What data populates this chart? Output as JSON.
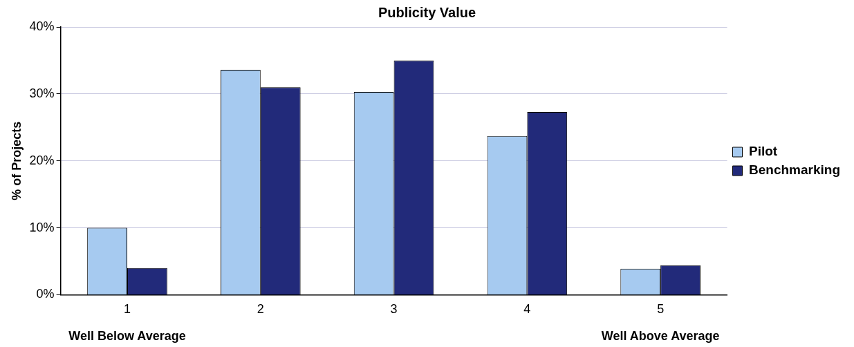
{
  "chart_data": {
    "type": "bar",
    "title": "Publicity Value",
    "ylabel": "% of Projects",
    "categories": [
      "1",
      "2",
      "3",
      "4",
      "5"
    ],
    "series": [
      {
        "name": "Pilot",
        "color": "#a6caf0",
        "values": [
          10,
          33.6,
          30.3,
          23.7,
          3.9
        ]
      },
      {
        "name": "Benchmarking",
        "color": "#222a7a",
        "values": [
          4,
          31,
          35,
          27.3,
          4.4
        ]
      }
    ],
    "ylim": [
      0,
      40
    ],
    "yticks": [
      {
        "value": 0,
        "label": "0%"
      },
      {
        "value": 10,
        "label": "10%"
      },
      {
        "value": 20,
        "label": "20%"
      },
      {
        "value": 30,
        "label": "30%"
      },
      {
        "value": 40,
        "label": "40%"
      }
    ],
    "grid": "y",
    "legend": "right",
    "annotations": [
      "Well Below Average",
      "Well Above Average"
    ]
  }
}
